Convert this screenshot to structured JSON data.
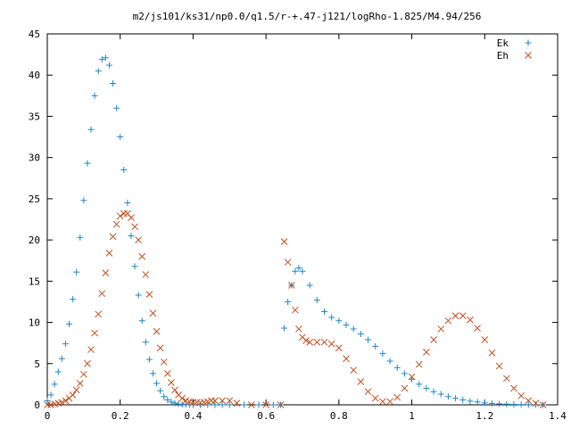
{
  "chart_data": {
    "type": "scatter",
    "title": "m2/js101/ks31/np0.0/q1.5/r-+.47-j121/logRho-1.825/M4.94/256",
    "xlabel": "",
    "ylabel": "",
    "xlim": [
      0,
      1.4
    ],
    "ylim": [
      0,
      45
    ],
    "xticks": [
      "0",
      "0.2",
      "0.4",
      "0.6",
      "0.8",
      "1",
      "1.2",
      "1.4"
    ],
    "yticks": [
      "0",
      "5",
      "10",
      "15",
      "20",
      "25",
      "30",
      "35",
      "40",
      "45"
    ],
    "grid": false,
    "legend_position": "top-right",
    "series": [
      {
        "name": "Ek",
        "marker": "plus",
        "color": "#1f87c8",
        "x": [
          0.0,
          0.01,
          0.02,
          0.03,
          0.04,
          0.05,
          0.06,
          0.07,
          0.08,
          0.09,
          0.1,
          0.11,
          0.12,
          0.13,
          0.14,
          0.15,
          0.16,
          0.17,
          0.18,
          0.19,
          0.2,
          0.21,
          0.22,
          0.23,
          0.24,
          0.25,
          0.26,
          0.27,
          0.28,
          0.29,
          0.3,
          0.31,
          0.32,
          0.33,
          0.34,
          0.35,
          0.36,
          0.37,
          0.38,
          0.39,
          0.4,
          0.42,
          0.44,
          0.46,
          0.48,
          0.5,
          0.54,
          0.58,
          0.62,
          0.64,
          0.65,
          0.66,
          0.67,
          0.68,
          0.69,
          0.7,
          0.72,
          0.74,
          0.76,
          0.78,
          0.8,
          0.82,
          0.84,
          0.86,
          0.88,
          0.9,
          0.92,
          0.94,
          0.96,
          0.98,
          1.0,
          1.02,
          1.04,
          1.06,
          1.08,
          1.1,
          1.12,
          1.14,
          1.16,
          1.18,
          1.2,
          1.22,
          1.24,
          1.26,
          1.28,
          1.3,
          1.32,
          1.34,
          1.36
        ],
        "y": [
          0.5,
          1.2,
          2.5,
          4.0,
          5.6,
          7.4,
          9.8,
          12.8,
          16.1,
          20.3,
          24.8,
          29.3,
          33.4,
          37.5,
          40.5,
          41.9,
          42.1,
          41.2,
          39.0,
          36.0,
          32.5,
          28.5,
          24.5,
          20.5,
          16.8,
          13.3,
          10.2,
          7.6,
          5.5,
          3.8,
          2.6,
          1.7,
          1.0,
          0.6,
          0.35,
          0.2,
          0.1,
          0.05,
          0.03,
          0.02,
          0.0,
          0.0,
          0.0,
          0.0,
          0.0,
          0.0,
          0.0,
          0.0,
          0.0,
          0.0,
          9.3,
          12.5,
          14.5,
          16.2,
          16.6,
          16.2,
          14.5,
          12.7,
          11.3,
          10.6,
          10.2,
          9.7,
          9.2,
          8.6,
          7.9,
          7.1,
          6.2,
          5.3,
          4.5,
          3.8,
          3.1,
          2.5,
          2.0,
          1.6,
          1.3,
          1.0,
          0.8,
          0.6,
          0.45,
          0.35,
          0.25,
          0.18,
          0.12,
          0.08,
          0.05,
          0.03,
          0.02,
          0.0,
          0.0
        ]
      },
      {
        "name": "Eh",
        "marker": "cross",
        "color": "#c0501f",
        "x": [
          0.0,
          0.01,
          0.02,
          0.03,
          0.04,
          0.05,
          0.06,
          0.07,
          0.08,
          0.09,
          0.1,
          0.11,
          0.12,
          0.13,
          0.14,
          0.15,
          0.16,
          0.17,
          0.18,
          0.19,
          0.2,
          0.21,
          0.22,
          0.23,
          0.24,
          0.25,
          0.26,
          0.27,
          0.28,
          0.29,
          0.3,
          0.31,
          0.32,
          0.33,
          0.34,
          0.35,
          0.36,
          0.37,
          0.38,
          0.39,
          0.4,
          0.41,
          0.42,
          0.43,
          0.44,
          0.45,
          0.46,
          0.48,
          0.5,
          0.52,
          0.56,
          0.6,
          0.64,
          0.65,
          0.66,
          0.67,
          0.68,
          0.69,
          0.7,
          0.71,
          0.72,
          0.74,
          0.76,
          0.78,
          0.8,
          0.82,
          0.84,
          0.86,
          0.88,
          0.9,
          0.92,
          0.94,
          0.96,
          0.98,
          1.0,
          1.02,
          1.04,
          1.06,
          1.08,
          1.1,
          1.12,
          1.14,
          1.16,
          1.18,
          1.2,
          1.22,
          1.24,
          1.26,
          1.28,
          1.3,
          1.32,
          1.34,
          1.36
        ],
        "y": [
          0.0,
          0.0,
          0.1,
          0.2,
          0.3,
          0.5,
          0.8,
          1.2,
          1.8,
          2.6,
          3.7,
          5.0,
          6.7,
          8.7,
          11.0,
          13.5,
          16.0,
          18.4,
          20.4,
          21.9,
          22.9,
          23.2,
          23.2,
          22.7,
          21.6,
          20.0,
          18.0,
          15.8,
          13.4,
          11.1,
          8.9,
          6.9,
          5.2,
          3.8,
          2.7,
          1.8,
          1.2,
          0.8,
          0.5,
          0.4,
          0.3,
          0.3,
          0.25,
          0.3,
          0.4,
          0.5,
          0.5,
          0.5,
          0.5,
          0.2,
          0.0,
          0.0,
          0.0,
          19.8,
          17.3,
          14.5,
          11.5,
          9.2,
          8.2,
          7.8,
          7.6,
          7.6,
          7.6,
          7.4,
          6.9,
          5.6,
          4.2,
          2.8,
          1.6,
          0.8,
          0.4,
          0.4,
          0.9,
          2.0,
          3.4,
          4.9,
          6.4,
          7.9,
          9.2,
          10.2,
          10.8,
          10.8,
          10.3,
          9.3,
          7.9,
          6.3,
          4.7,
          3.2,
          2.0,
          1.1,
          0.5,
          0.2,
          0.0
        ]
      }
    ]
  }
}
